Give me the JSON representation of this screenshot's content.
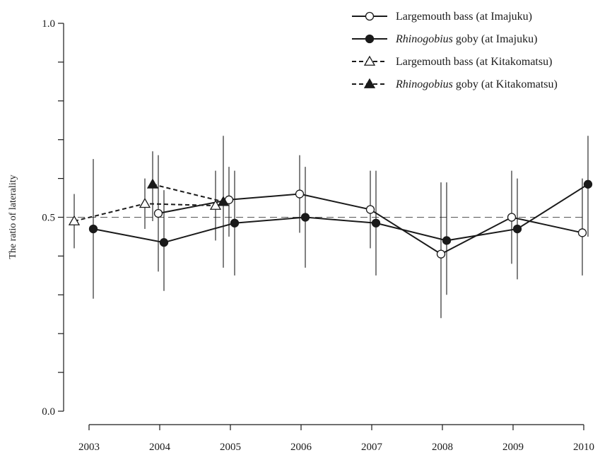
{
  "chart_data": {
    "type": "line",
    "title": "",
    "xlabel": "",
    "ylabel": "The ratio of laterality",
    "x_ticks": [
      "2003",
      "2004",
      "2005",
      "2006",
      "2007",
      "2008",
      "2009",
      "2010"
    ],
    "y_ticks": [
      "0.0",
      "0.5",
      "1.0"
    ],
    "ylim": [
      0.0,
      1.0
    ],
    "xlim": [
      2003,
      2010
    ],
    "reference_line": {
      "y": 0.5,
      "style": "dashed"
    },
    "grid": false,
    "legend_position": "top-right",
    "series": [
      {
        "name": "Largemouth bass (at Imajuku)",
        "name_parts": [
          {
            "text": "Largemouth bass (at Imajuku)",
            "italic": false
          }
        ],
        "marker": "circle-open",
        "line": "solid",
        "x": [
          2004,
          2005,
          2006,
          2007,
          2008,
          2009,
          2010
        ],
        "y": [
          0.51,
          0.545,
          0.56,
          0.52,
          0.405,
          0.5,
          0.46
        ],
        "err_low": [
          0.36,
          0.45,
          0.46,
          0.42,
          0.24,
          0.38,
          0.35
        ],
        "err_high": [
          0.66,
          0.63,
          0.66,
          0.62,
          0.59,
          0.62,
          0.6
        ]
      },
      {
        "name": "Rhinogobius goby (at Imajuku)",
        "name_parts": [
          {
            "text": "Rhinogobius",
            "italic": true
          },
          {
            "text": " goby (at Imajuku)",
            "italic": false
          }
        ],
        "marker": "circle-filled",
        "line": "solid",
        "x": [
          2003,
          2004,
          2005,
          2006,
          2007,
          2008,
          2009,
          2010
        ],
        "y": [
          0.47,
          0.435,
          0.485,
          0.5,
          0.485,
          0.44,
          0.47,
          0.585
        ],
        "err_low": [
          0.29,
          0.31,
          0.35,
          0.37,
          0.35,
          0.3,
          0.34,
          0.45
        ],
        "err_high": [
          0.65,
          0.57,
          0.62,
          0.63,
          0.62,
          0.59,
          0.6,
          0.71
        ]
      },
      {
        "name": "Largemouth bass (at Kitakomatsu)",
        "name_parts": [
          {
            "text": "Largemouth bass (at Kitakomatsu)",
            "italic": false
          }
        ],
        "marker": "triangle-open",
        "line": "dashed",
        "x": [
          2003,
          2004,
          2005
        ],
        "y": [
          0.49,
          0.535,
          0.53
        ],
        "err_low": [
          0.42,
          0.47,
          0.44
        ],
        "err_high": [
          0.56,
          0.6,
          0.62
        ]
      },
      {
        "name": "Rhinogobius goby (at Kitakomatsu)",
        "name_parts": [
          {
            "text": "Rhinogobius",
            "italic": true
          },
          {
            "text": " goby (at Kitakomatsu)",
            "italic": false
          }
        ],
        "marker": "triangle-filled",
        "line": "dashed",
        "x": [
          2004,
          2005
        ],
        "y": [
          0.585,
          0.54
        ],
        "err_low": [
          0.49,
          0.37
        ],
        "err_high": [
          0.67,
          0.71
        ]
      }
    ]
  }
}
